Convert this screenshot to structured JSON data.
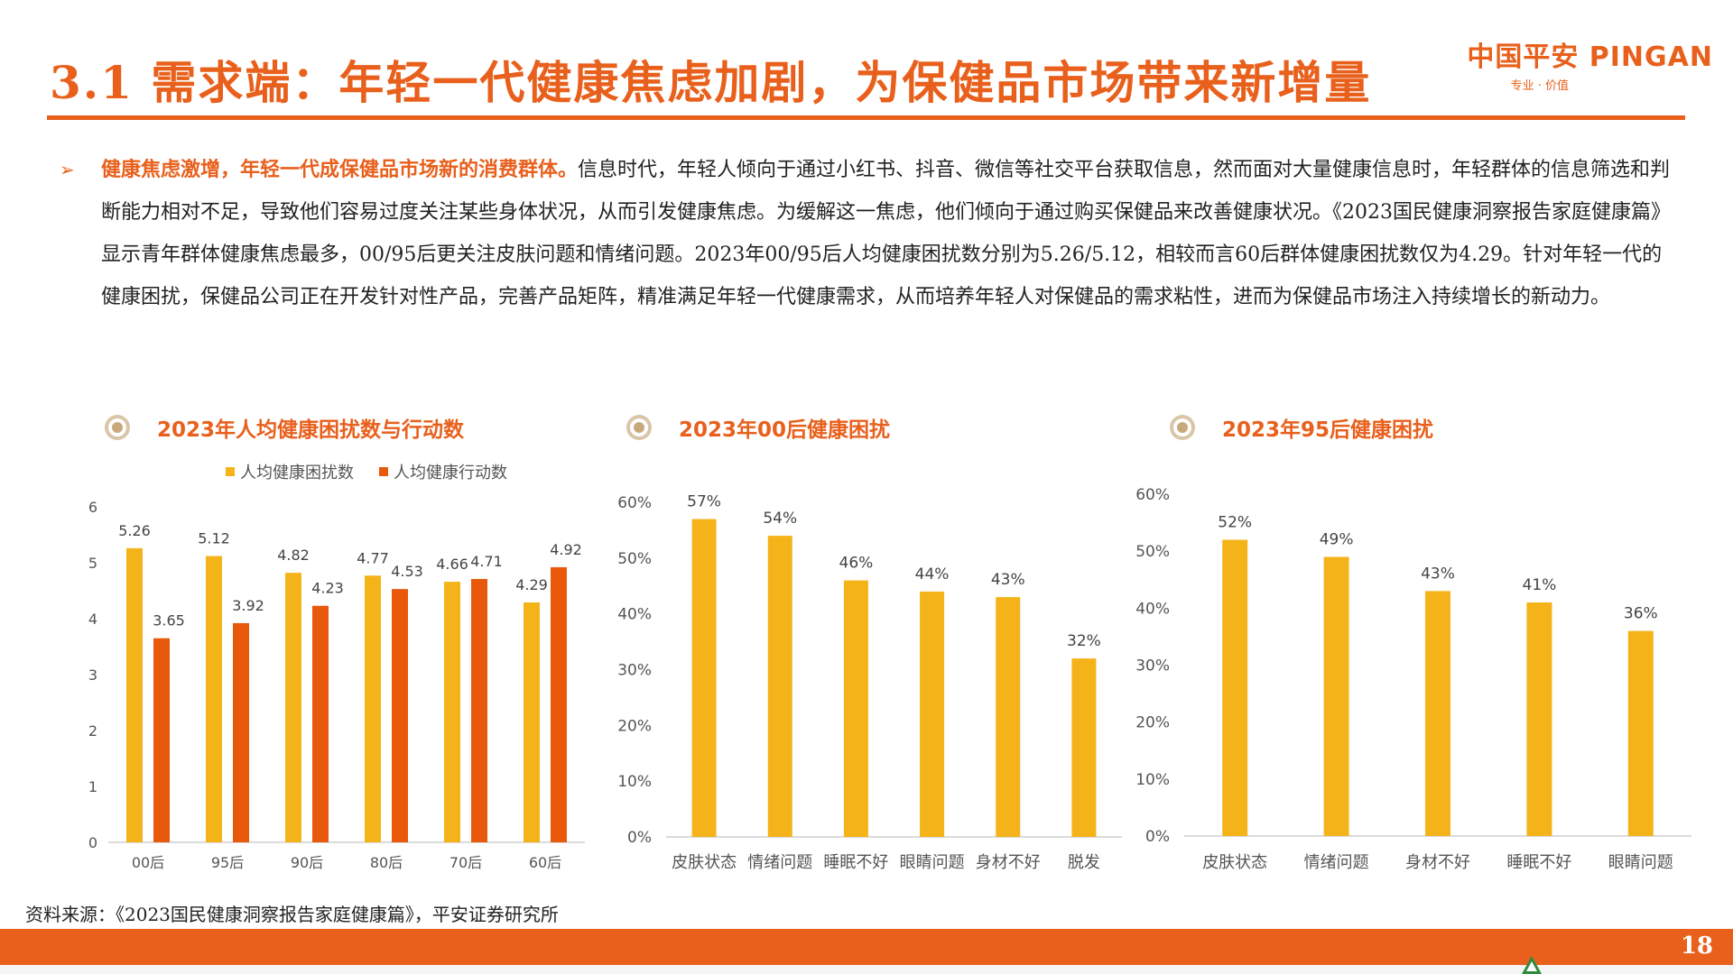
{
  "header": {
    "title": "3.1 需求端：年轻一代健康焦虑加剧，为保健品市场带来新增量",
    "logo_text": "中国平安 PINGAN",
    "logo_tagline": "专业 · 价值"
  },
  "body": {
    "bullet_lead": "健康焦虑激增，年轻一代成保健品市场新的消费群体。",
    "bullet_rest": "信息时代，年轻人倾向于通过小红书、抖音、微信等社交平台获取信息，然而面对大量健康信息时，年轻群体的信息筛选和判断能力相对不足，导致他们容易过度关注某些身体状况，从而引发健康焦虑。为缓解这一焦虑，他们倾向于通过购买保健品来改善健康状况。《2023国民健康洞察报告家庭健康篇》显示青年群体健康焦虑最多，00/95后更关注皮肤问题和情绪问题。2023年00/95后人均健康困扰数分别为5.26/5.12，相较而言60后群体健康困扰数仅为4.29。针对年轻一代的健康困扰，保健品公司正在开发针对性产品，完善产品矩阵，精准满足年轻一代健康需求，从而培养年轻人对保健品的需求粘性，进而为保健品市场注入持续增长的新动力。"
  },
  "colors": {
    "accent": "#E8601C",
    "bar_yellow": "#F5B31A",
    "bar_orange": "#E8590C"
  },
  "chart_data": [
    {
      "type": "bar",
      "title": "2023年人均健康困扰数与行动数",
      "categories": [
        "00后",
        "95后",
        "90后",
        "80后",
        "70后",
        "60后"
      ],
      "series": [
        {
          "name": "人均健康困扰数",
          "values": [
            5.26,
            5.12,
            4.82,
            4.77,
            4.66,
            4.29
          ],
          "labels": [
            "5.26",
            "5.12",
            "4.82",
            "4.77",
            "4.66",
            "4.29"
          ],
          "color": "#F5B31A"
        },
        {
          "name": "人均健康行动数",
          "values": [
            3.65,
            3.92,
            4.23,
            4.53,
            4.71,
            4.92
          ],
          "labels": [
            "3.65",
            "3.92",
            "4.23",
            "4.53",
            "4.71",
            "4.92"
          ],
          "color": "#E8590C"
        }
      ],
      "ylim": [
        0,
        6
      ],
      "yticks": [
        "0",
        "1",
        "2",
        "3",
        "4",
        "5",
        "6"
      ],
      "legend": "top",
      "grid": false
    },
    {
      "type": "bar",
      "title": "2023年00后健康困扰",
      "categories": [
        "皮肤状态",
        "情绪问题",
        "睡眠不好",
        "眼睛问题",
        "身材不好",
        "脱发"
      ],
      "values": [
        57,
        54,
        46,
        44,
        43,
        32
      ],
      "labels": [
        "57%",
        "54%",
        "46%",
        "44%",
        "43%",
        "32%"
      ],
      "ylim": [
        0,
        60
      ],
      "yticks": [
        "0%",
        "10%",
        "20%",
        "30%",
        "40%",
        "50%",
        "60%"
      ],
      "color": "#F5B31A",
      "grid": false
    },
    {
      "type": "bar",
      "title": "2023年95后健康困扰",
      "categories": [
        "皮肤状态",
        "情绪问题",
        "身材不好",
        "睡眠不好",
        "眼睛问题"
      ],
      "values": [
        52,
        49,
        43,
        41,
        36
      ],
      "labels": [
        "52%",
        "49%",
        "43%",
        "41%",
        "36%"
      ],
      "ylim": [
        0,
        60
      ],
      "yticks": [
        "0%",
        "10%",
        "20%",
        "30%",
        "40%",
        "50%",
        "60%"
      ],
      "color": "#F5B31A",
      "grid": false
    }
  ],
  "footer": {
    "source": "资料来源：《2023国民健康洞察报告家庭健康篇》，平安证券研究所",
    "page_number": "18"
  }
}
